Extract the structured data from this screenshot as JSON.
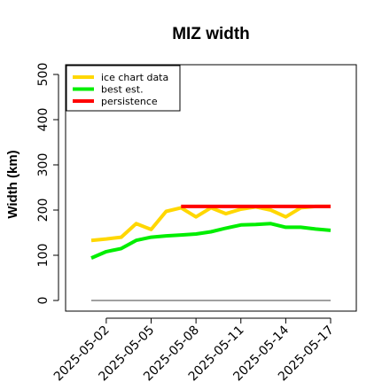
{
  "chart_data": {
    "type": "line",
    "title": "MIZ width",
    "xlabel": "",
    "ylabel": "Width (km)",
    "ylim": [
      0,
      500
    ],
    "yticks": [
      0,
      100,
      200,
      300,
      400,
      500
    ],
    "xlim": [
      "2025-05-01",
      "2025-05-17"
    ],
    "xtick_labels": [
      "2025-05-02",
      "2025-05-05",
      "2025-05-08",
      "2025-05-11",
      "2025-05-14",
      "2025-05-17"
    ],
    "x": [
      "2025-05-01",
      "2025-05-02",
      "2025-05-03",
      "2025-05-04",
      "2025-05-05",
      "2025-05-06",
      "2025-05-07",
      "2025-05-08",
      "2025-05-09",
      "2025-05-10",
      "2025-05-11",
      "2025-05-12",
      "2025-05-13",
      "2025-05-14",
      "2025-05-15",
      "2025-05-16",
      "2025-05-17"
    ],
    "series": [
      {
        "name": "ice chart data",
        "color": "#FFD700",
        "values": [
          133,
          136,
          140,
          170,
          157,
          197,
          205,
          185,
          205,
          192,
          202,
          207,
          200,
          185,
          205,
          208,
          208
        ]
      },
      {
        "name": "best est.",
        "color": "#00EE00",
        "values": [
          94,
          108,
          115,
          133,
          140,
          143,
          145,
          147,
          152,
          160,
          167,
          168,
          170,
          162,
          162,
          158,
          155
        ]
      },
      {
        "name": "persistence",
        "color": "#FF0000",
        "x": [
          "2025-05-07",
          "2025-05-17"
        ],
        "values": [
          208,
          208
        ]
      }
    ],
    "reference_line": {
      "value": 0,
      "color": "#808080"
    },
    "legend_placement": "top-left",
    "grid": false
  }
}
